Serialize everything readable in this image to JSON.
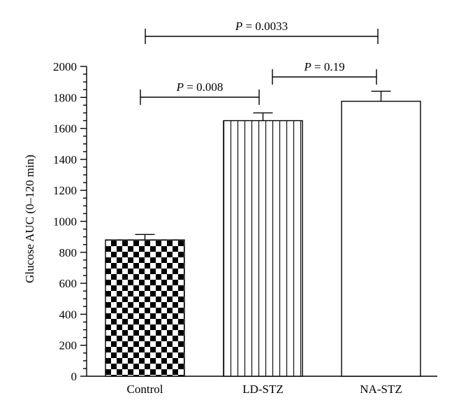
{
  "chart_data": {
    "type": "bar",
    "title": "",
    "xlabel": "",
    "ylabel": "Glucose AUC (0–120 min)",
    "ylim": [
      0,
      2000
    ],
    "yticks": [
      0,
      200,
      400,
      600,
      800,
      1000,
      1200,
      1400,
      1600,
      1800,
      2000
    ],
    "minor_tick_step": 50,
    "categories": [
      "Control",
      "LD-STZ",
      "NA-STZ"
    ],
    "values": [
      880,
      1650,
      1775
    ],
    "errors": [
      35,
      50,
      65
    ],
    "bar_patterns": [
      "checkerboard",
      "vertical-lines",
      "none"
    ],
    "comparisons": [
      {
        "from": "Control",
        "to": "LD-STZ",
        "p_prefix": "P",
        "p_value": "= 0.008"
      },
      {
        "from": "LD-STZ",
        "to": "NA-STZ",
        "p_prefix": "P",
        "p_value": "= 0.19"
      },
      {
        "from": "Control",
        "to": "NA-STZ",
        "p_prefix": "P",
        "p_value": "= 0.0033"
      }
    ],
    "grid": false,
    "legend": "none"
  }
}
